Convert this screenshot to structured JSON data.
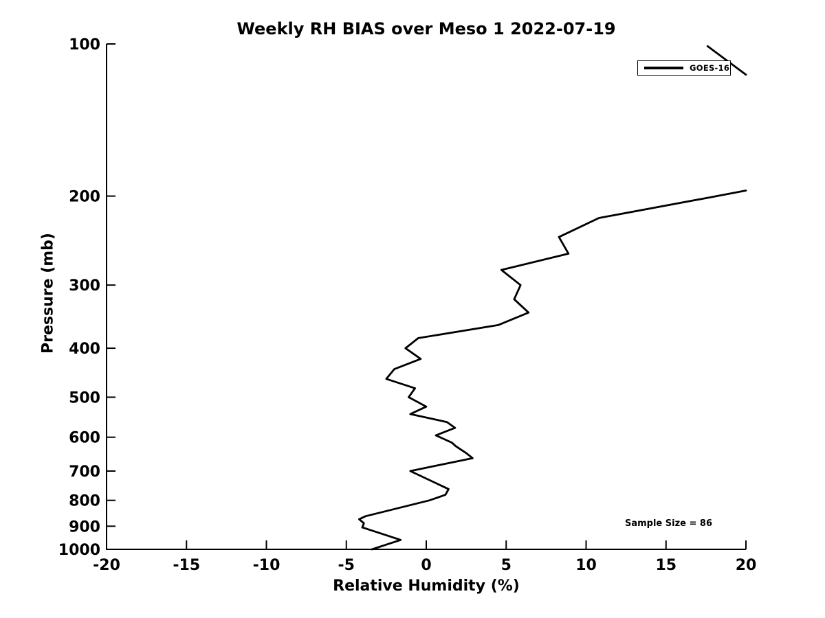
{
  "chart_data": {
    "type": "line",
    "title": "Weekly RH BIAS over Meso 1 2022-07-19",
    "xlabel": "Relative Humidity (%)",
    "ylabel": "Pressure (mb)",
    "xlim": [
      -20,
      20
    ],
    "ylim": [
      1000,
      100
    ],
    "yscale": "log",
    "x_ticks": [
      -20,
      -15,
      -10,
      -5,
      0,
      5,
      10,
      15,
      20
    ],
    "y_ticks": [
      100,
      200,
      300,
      400,
      500,
      600,
      700,
      800,
      900,
      1000
    ],
    "grid": false,
    "annotation": "Sample Size = 86",
    "legend": {
      "position": "top-right",
      "entries": [
        {
          "label": "GOES-16",
          "color": "#000000"
        }
      ]
    },
    "colors": {
      "line": "#000000",
      "text": "#000000",
      "background": "#ffffff"
    },
    "series": [
      {
        "name": "GOES-16",
        "color": "#000000",
        "segments_rh_pressure": [
          [
            [
              17.6,
              101
            ],
            [
              20.0,
              115
            ]
          ],
          [
            [
              20.0,
              195
            ],
            [
              17.8,
              201
            ],
            [
              10.8,
              221
            ],
            [
              8.3,
              241
            ],
            [
              8.9,
              260
            ],
            [
              4.7,
              280
            ],
            [
              5.9,
              300
            ],
            [
              5.5,
              320
            ],
            [
              6.4,
              340
            ],
            [
              4.5,
              360
            ],
            [
              -0.5,
              382
            ],
            [
              -1.3,
              400
            ],
            [
              -0.35,
              420
            ],
            [
              -2.0,
              440
            ],
            [
              -2.5,
              460
            ],
            [
              -0.7,
              480
            ],
            [
              -1.1,
              500
            ],
            [
              0.0,
              522
            ],
            [
              -1.0,
              540
            ],
            [
              1.3,
              560
            ],
            [
              1.8,
              575
            ],
            [
              0.6,
              595
            ],
            [
              1.6,
              615
            ],
            [
              1.85,
              625
            ],
            [
              2.5,
              645
            ],
            [
              2.9,
              660
            ],
            [
              -1.0,
              700
            ],
            [
              1.4,
              760
            ],
            [
              1.2,
              780
            ],
            [
              0.2,
              800
            ],
            [
              -3.8,
              860
            ],
            [
              -4.2,
              872
            ],
            [
              -3.9,
              888
            ],
            [
              -4.0,
              905
            ],
            [
              -1.6,
              958
            ],
            [
              -3.4,
              1000
            ]
          ]
        ]
      }
    ]
  }
}
